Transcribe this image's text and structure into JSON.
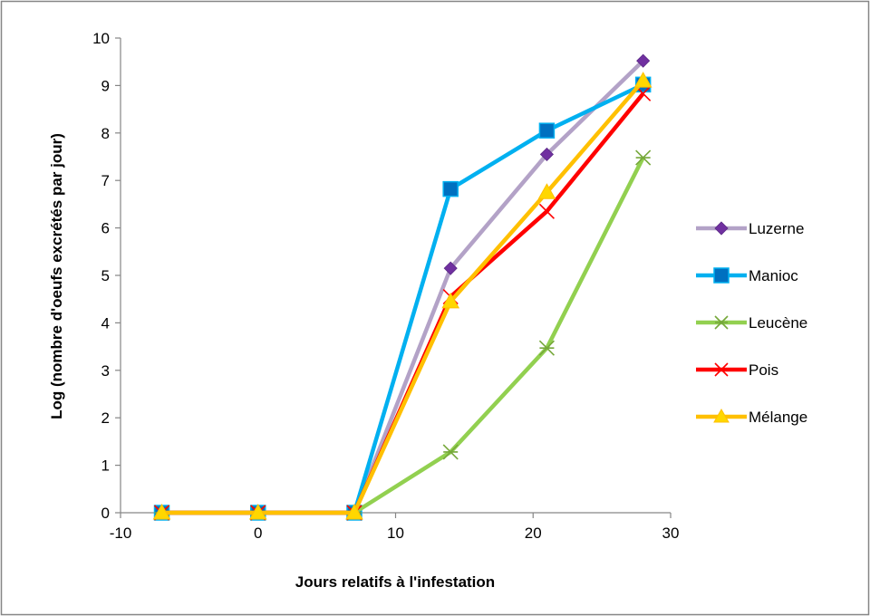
{
  "chart_data": {
    "type": "line",
    "xlabel": "Jours relatifs à l'infestation",
    "ylabel": "Log (nombre d'oeufs excrétés par jour)",
    "xlim": [
      -10,
      30
    ],
    "ylim": [
      0,
      10
    ],
    "xticks": [
      -10,
      0,
      10,
      20,
      30
    ],
    "yticks": [
      0,
      1,
      2,
      3,
      4,
      5,
      6,
      7,
      8,
      9,
      10
    ],
    "x": [
      -7,
      0,
      7,
      14,
      21,
      28
    ],
    "grid": false,
    "legend_position": "right",
    "series": [
      {
        "name": "Luzerne",
        "values": [
          0,
          0,
          0,
          5.15,
          7.55,
          9.52
        ],
        "color": "#b3a2c7",
        "marker": "diamond",
        "marker_color": "#7030a0"
      },
      {
        "name": "Manioc",
        "values": [
          0,
          0,
          0,
          6.82,
          8.05,
          9.02
        ],
        "color": "#00b0f0",
        "marker": "square",
        "marker_color": "#0070c0"
      },
      {
        "name": "Leucène",
        "values": [
          0,
          0,
          0,
          1.28,
          3.47,
          7.48
        ],
        "color": "#92d050",
        "marker": "star",
        "marker_color": "#76a83a"
      },
      {
        "name": "Pois",
        "values": [
          0,
          0,
          0,
          4.55,
          6.35,
          8.83
        ],
        "color": "#ff0000",
        "marker": "x",
        "marker_color": "#ff0000"
      },
      {
        "name": "Mélange",
        "values": [
          0,
          0,
          0,
          4.45,
          6.75,
          9.1
        ],
        "color": "#ffc000",
        "marker": "triangle",
        "marker_color": "#ffd700"
      }
    ]
  }
}
